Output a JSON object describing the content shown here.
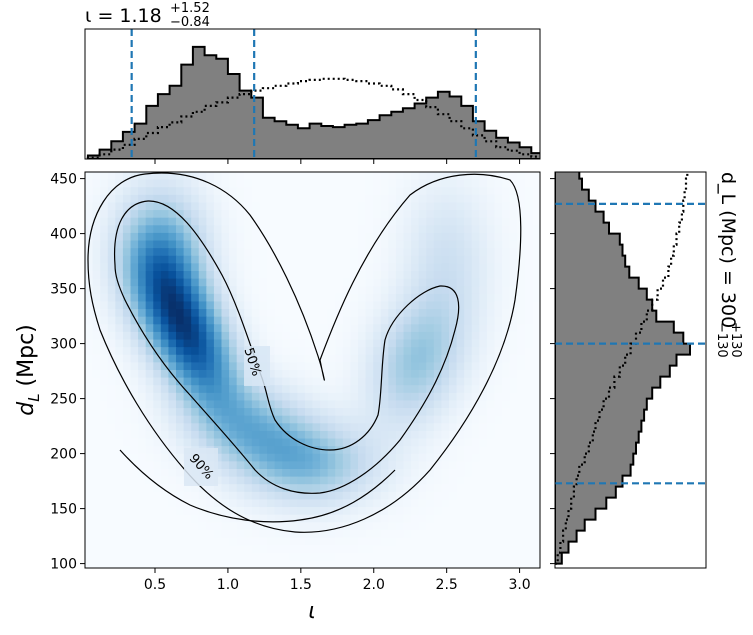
{
  "chart_data": [
    {
      "panel": "top-marginal",
      "type": "histogram",
      "title": "ι = 1.18",
      "title_sup": "+1.52",
      "title_sub": "−0.84",
      "median": 1.18,
      "interval": [
        0.34,
        2.7
      ],
      "bins_x": [
        0.04,
        0.12,
        0.2,
        0.28,
        0.36,
        0.44,
        0.52,
        0.6,
        0.68,
        0.76,
        0.84,
        0.92,
        1.0,
        1.08,
        1.16,
        1.24,
        1.32,
        1.4,
        1.48,
        1.56,
        1.64,
        1.72,
        1.8,
        1.88,
        1.96,
        2.04,
        2.12,
        2.2,
        2.28,
        2.36,
        2.44,
        2.52,
        2.6,
        2.68,
        2.76,
        2.84,
        2.92,
        3.0,
        3.08
      ],
      "filled_density": [
        0.03,
        0.08,
        0.15,
        0.23,
        0.3,
        0.45,
        0.55,
        0.62,
        0.8,
        0.95,
        0.88,
        0.85,
        0.72,
        0.58,
        0.52,
        0.35,
        0.32,
        0.29,
        0.26,
        0.3,
        0.28,
        0.27,
        0.29,
        0.3,
        0.33,
        0.37,
        0.4,
        0.43,
        0.47,
        0.52,
        0.57,
        0.53,
        0.45,
        0.32,
        0.24,
        0.18,
        0.14,
        0.1,
        0.05
      ],
      "dotted_density": [
        0.01,
        0.04,
        0.08,
        0.12,
        0.17,
        0.22,
        0.27,
        0.31,
        0.36,
        0.4,
        0.45,
        0.48,
        0.52,
        0.55,
        0.58,
        0.6,
        0.62,
        0.64,
        0.66,
        0.67,
        0.68,
        0.68,
        0.67,
        0.66,
        0.64,
        0.62,
        0.59,
        0.55,
        0.5,
        0.44,
        0.38,
        0.32,
        0.26,
        0.2,
        0.15,
        0.1,
        0.07,
        0.04,
        0.02
      ]
    },
    {
      "panel": "main",
      "type": "heatmap",
      "xlabel": "ι",
      "ylabel": "d_L (Mpc)",
      "xlim": [
        0.02,
        3.14
      ],
      "ylim": [
        96,
        456
      ],
      "xticks": [
        "0.5",
        "1.0",
        "1.5",
        "2.0",
        "2.5",
        "3.0"
      ],
      "yticks": [
        "100",
        "150",
        "200",
        "250",
        "300",
        "350",
        "400",
        "450"
      ],
      "contour_labels": [
        "50%",
        "90%"
      ],
      "density_components": [
        {
          "x": 0.72,
          "y": 310,
          "sx": 0.22,
          "sy": 45,
          "rho": -0.55,
          "w": 1.0
        },
        {
          "x": 0.55,
          "y": 380,
          "sx": 0.2,
          "sy": 40,
          "rho": 0.0,
          "w": 0.55
        },
        {
          "x": 1.2,
          "y": 220,
          "sx": 0.3,
          "sy": 30,
          "rho": -0.3,
          "w": 0.45
        },
        {
          "x": 1.6,
          "y": 190,
          "sx": 0.3,
          "sy": 25,
          "rho": 0.0,
          "w": 0.35
        },
        {
          "x": 2.3,
          "y": 285,
          "sx": 0.22,
          "sy": 40,
          "rho": 0.3,
          "w": 0.4
        },
        {
          "x": 2.5,
          "y": 380,
          "sx": 0.2,
          "sy": 45,
          "rho": 0.0,
          "w": 0.18
        }
      ]
    },
    {
      "panel": "right-marginal",
      "type": "histogram",
      "title": "d_L (Mpc) = 300",
      "title_sup": "+130",
      "title_sub": "−130",
      "median": 300,
      "interval": [
        173,
        427
      ],
      "bins_y": [
        100,
        110,
        120,
        130,
        140,
        150,
        160,
        170,
        180,
        190,
        200,
        210,
        220,
        230,
        240,
        250,
        260,
        270,
        280,
        290,
        300,
        310,
        320,
        330,
        340,
        350,
        360,
        370,
        380,
        390,
        400,
        410,
        420,
        430,
        440,
        450
      ],
      "filled_density": [
        0.05,
        0.1,
        0.16,
        0.22,
        0.3,
        0.38,
        0.45,
        0.5,
        0.56,
        0.58,
        0.6,
        0.62,
        0.64,
        0.66,
        0.68,
        0.72,
        0.78,
        0.85,
        0.9,
        1.0,
        0.95,
        0.88,
        0.75,
        0.72,
        0.68,
        0.62,
        0.55,
        0.52,
        0.5,
        0.48,
        0.4,
        0.36,
        0.3,
        0.25,
        0.2,
        0.18
      ],
      "dotted_density": [
        0.02,
        0.04,
        0.06,
        0.08,
        0.1,
        0.12,
        0.14,
        0.16,
        0.18,
        0.22,
        0.25,
        0.28,
        0.3,
        0.33,
        0.36,
        0.4,
        0.44,
        0.48,
        0.52,
        0.56,
        0.6,
        0.64,
        0.68,
        0.72,
        0.76,
        0.8,
        0.84,
        0.86,
        0.88,
        0.9,
        0.92,
        0.94,
        0.95,
        0.96,
        0.97,
        0.98
      ]
    }
  ]
}
